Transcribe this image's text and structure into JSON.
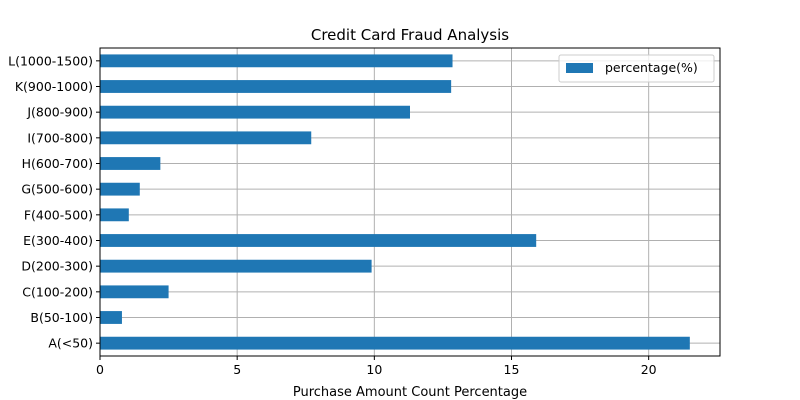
{
  "chart_data": {
    "type": "bar",
    "orientation": "horizontal",
    "title": "Credit Card Fraud Analysis",
    "xlabel": "Purchase Amount Count Percentage",
    "ylabel": "",
    "xlim": [
      0,
      22.6
    ],
    "xticks": [
      "0",
      "5",
      "10",
      "15",
      "20"
    ],
    "grid": true,
    "legend_position": "top-right",
    "categories": [
      "A(<50)",
      "B(50-100)",
      "C(100-200)",
      "D(200-300)",
      "E(300-400)",
      "F(400-500)",
      "G(500-600)",
      "H(600-700)",
      "I(700-800)",
      "J(800-900)",
      "K(900-1000)",
      "L(1000-1500)"
    ],
    "series": [
      {
        "name": "percentage(%)",
        "color": "#1f77b4",
        "values": [
          21.5,
          0.8,
          2.5,
          9.9,
          15.9,
          1.05,
          1.45,
          2.2,
          7.7,
          11.3,
          12.8,
          12.85
        ]
      }
    ]
  }
}
